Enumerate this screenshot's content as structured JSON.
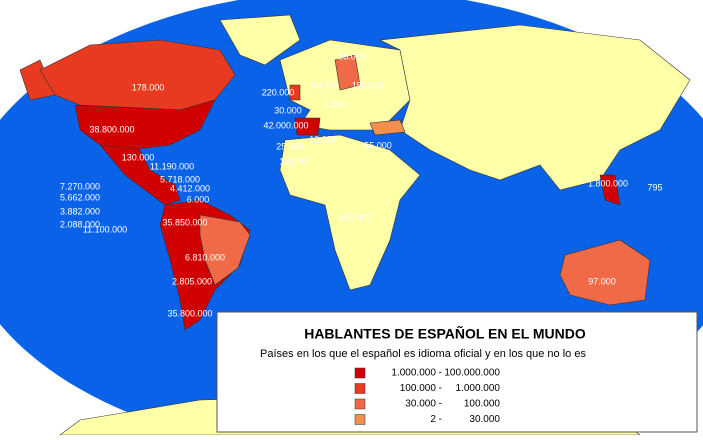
{
  "map_labels": [
    "58.000",
    "178.000",
    "220.000",
    "50.000",
    "150.000",
    "30.000",
    "3.000",
    "38.800.000",
    "42.000.000",
    "10.100",
    "25.000",
    "55.000",
    "18.000",
    "130.000",
    "11.190.000",
    "5.718.000",
    "7.270.000",
    "4.412.000",
    "5.662.000",
    "6.000",
    "3.882.000",
    "35.850.000",
    "2.088.000",
    "11.100.000",
    "1.800.000",
    "795",
    "443.000",
    "6.810.000",
    "2.805.000",
    "97.000",
    "35.800.000"
  ],
  "legend": {
    "title": "HABLANTES DE ESPAÑOL EN EL MUNDO",
    "subtitle": "Países en los que el español es idioma oficial y en los que no lo es",
    "entries": [
      {
        "from": "1.000.000 -",
        "to": "100.000.000",
        "color": "#d00000"
      },
      {
        "from": "100.000 -",
        "to": "1.000.000",
        "color": "#e83a20"
      },
      {
        "from": "30.000 -",
        "to": "100.000",
        "color": "#f06a48"
      },
      {
        "from": "2 -",
        "to": "30.000",
        "color": "#f39050"
      }
    ]
  }
}
